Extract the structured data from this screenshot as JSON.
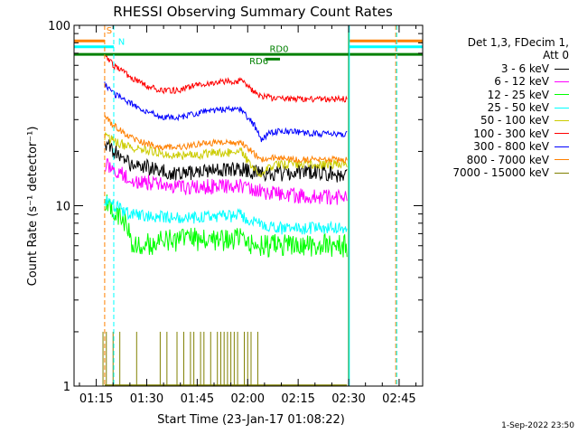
{
  "chart_data": {
    "type": "line",
    "title": "RHESSI Observing Summary Count Rates",
    "xlabel": "Start Time (23-Jan-17 01:08:22)",
    "ylabel": "Count Rate (s⁻¹ detector⁻¹)",
    "y_scale": "log",
    "ylim": [
      1,
      100
    ],
    "xlim_minutes": [
      68.4,
      172
    ],
    "x_ticks": [
      {
        "minute": 75,
        "label": "01:15"
      },
      {
        "minute": 90,
        "label": "01:30"
      },
      {
        "minute": 105,
        "label": "01:45"
      },
      {
        "minute": 120,
        "label": "02:00"
      },
      {
        "minute": 135,
        "label": "02:15"
      },
      {
        "minute": 150,
        "label": "02:30"
      },
      {
        "minute": 165,
        "label": "02:45"
      }
    ],
    "y_ticks": [
      {
        "value": 1,
        "label": "1"
      },
      {
        "value": 10,
        "label": "10"
      },
      {
        "value": 100,
        "label": "100"
      }
    ],
    "legend_header": [
      "Det 1,3, FDecim 1,",
      "Att 0"
    ],
    "legend_position": "right",
    "series": [
      {
        "name": "3 - 6 keV",
        "color": "#000000",
        "points": [
          [
            78,
            22
          ],
          [
            85,
            17
          ],
          [
            100,
            15
          ],
          [
            118,
            16
          ],
          [
            124,
            15
          ],
          [
            130,
            15
          ],
          [
            140,
            15.5
          ],
          [
            150,
            14.5
          ]
        ],
        "noise": 0.1
      },
      {
        "name": "6 - 12 keV",
        "color": "#ff00ff",
        "points": [
          [
            78,
            17
          ],
          [
            85,
            14
          ],
          [
            100,
            12.5
          ],
          [
            118,
            13
          ],
          [
            124,
            12
          ],
          [
            130,
            11.5
          ],
          [
            150,
            11
          ]
        ],
        "noise": 0.1
      },
      {
        "name": "12 - 25 keV",
        "color": "#00ff00",
        "points": [
          [
            78,
            10
          ],
          [
            84,
            8
          ],
          [
            86,
            6
          ],
          [
            100,
            6.5
          ],
          [
            118,
            6.5
          ],
          [
            123,
            6
          ],
          [
            130,
            6
          ],
          [
            150,
            6
          ]
        ],
        "noise": 0.15
      },
      {
        "name": "25 - 50 keV",
        "color": "#00ffff",
        "points": [
          [
            78,
            10.5
          ],
          [
            85,
            9
          ],
          [
            100,
            8.5
          ],
          [
            118,
            8.8
          ],
          [
            124,
            7.8
          ],
          [
            130,
            7.5
          ],
          [
            150,
            7.5
          ]
        ],
        "noise": 0.08
      },
      {
        "name": "50 - 100 keV",
        "color": "#cccc00",
        "points": [
          [
            78,
            24
          ],
          [
            85,
            21
          ],
          [
            100,
            19
          ],
          [
            118,
            20
          ],
          [
            123,
            15
          ],
          [
            128,
            17
          ],
          [
            140,
            17
          ],
          [
            150,
            17
          ]
        ],
        "noise": 0.06
      },
      {
        "name": "100 - 300 keV",
        "color": "#ff0000",
        "points": [
          [
            77,
            70
          ],
          [
            80,
            60
          ],
          [
            85,
            52
          ],
          [
            90,
            46
          ],
          [
            95,
            43
          ],
          [
            100,
            44
          ],
          [
            105,
            47
          ],
          [
            112,
            49
          ],
          [
            118,
            49
          ],
          [
            123,
            41
          ],
          [
            126,
            40
          ],
          [
            128,
            39
          ],
          [
            135,
            39
          ],
          [
            150,
            39
          ]
        ],
        "noise": 0.04
      },
      {
        "name": "300 - 800 keV",
        "color": "#0000ff",
        "points": [
          [
            77,
            48
          ],
          [
            80,
            42
          ],
          [
            85,
            37
          ],
          [
            90,
            33
          ],
          [
            95,
            31
          ],
          [
            100,
            31
          ],
          [
            106,
            33
          ],
          [
            112,
            34
          ],
          [
            118,
            34
          ],
          [
            122,
            28
          ],
          [
            124,
            23
          ],
          [
            126,
            25
          ],
          [
            130,
            26
          ],
          [
            140,
            25
          ],
          [
            150,
            25
          ]
        ],
        "noise": 0.04
      },
      {
        "name": "800 - 7000 keV",
        "color": "#ff8000",
        "points": [
          [
            77,
            32
          ],
          [
            80,
            28
          ],
          [
            85,
            24
          ],
          [
            90,
            22
          ],
          [
            95,
            21
          ],
          [
            100,
            21
          ],
          [
            106,
            22
          ],
          [
            112,
            22.5
          ],
          [
            118,
            22.5
          ],
          [
            124,
            18
          ],
          [
            128,
            18.5
          ],
          [
            135,
            18
          ],
          [
            150,
            18
          ]
        ],
        "noise": 0.04
      },
      {
        "name": "7000 - 15000 keV",
        "color": "#808000",
        "baseline": 1,
        "spikes": [
          [
            77,
            2
          ],
          [
            78,
            2
          ],
          [
            80,
            2
          ],
          [
            82,
            2
          ],
          [
            87,
            2
          ],
          [
            94,
            2
          ],
          [
            96,
            2
          ],
          [
            99,
            2
          ],
          [
            101,
            2
          ],
          [
            103,
            2
          ],
          [
            104,
            2
          ],
          [
            106,
            2
          ],
          [
            107,
            2
          ],
          [
            109,
            2
          ],
          [
            111,
            2
          ],
          [
            112,
            2
          ],
          [
            113,
            2
          ],
          [
            114,
            2
          ],
          [
            115,
            2
          ],
          [
            116,
            2
          ],
          [
            117,
            2
          ],
          [
            119,
            2
          ],
          [
            120,
            2
          ],
          [
            121,
            2
          ],
          [
            123,
            2
          ]
        ]
      }
    ],
    "data_window": {
      "start_minute": 77.5,
      "end_minute": 149.5
    },
    "annotations": [
      {
        "label": "S",
        "color": "#ff8000"
      },
      {
        "label": "N",
        "color": "#00ffff"
      },
      {
        "label": "RD0",
        "color": "#008000"
      },
      {
        "label": "RD6",
        "color": "#008000"
      }
    ],
    "flag_bars": [
      {
        "color": "#ff8000",
        "value": 82,
        "segments": [
          [
            68.4,
            77.5
          ],
          [
            150,
            172
          ]
        ]
      },
      {
        "color": "#00ffff",
        "value": 76,
        "segments": [
          [
            68.4,
            80.2
          ],
          [
            150,
            172
          ]
        ]
      },
      {
        "color": "#008000",
        "value": 69,
        "segments": [
          [
            68.4,
            172
          ]
        ]
      },
      {
        "color": "#008000",
        "value": 65,
        "segments": [
          [
            125.3,
            129.6
          ]
        ]
      }
    ],
    "vertical_markers": [
      {
        "minute": 77.5,
        "color": "#ff8000",
        "dashed": true
      },
      {
        "minute": 80.2,
        "color": "#00ffff",
        "dashed": true
      },
      {
        "minute": 150,
        "color": "#008000",
        "dashed": false
      },
      {
        "minute": 150.2,
        "color": "#00ffff",
        "dashed": false
      },
      {
        "minute": 164,
        "color": "#ff8000",
        "dashed": true
      },
      {
        "minute": 164.3,
        "color": "#00ffff",
        "dashed": true
      }
    ],
    "grid": false
  },
  "timestamp": "1-Sep-2022 23:50"
}
